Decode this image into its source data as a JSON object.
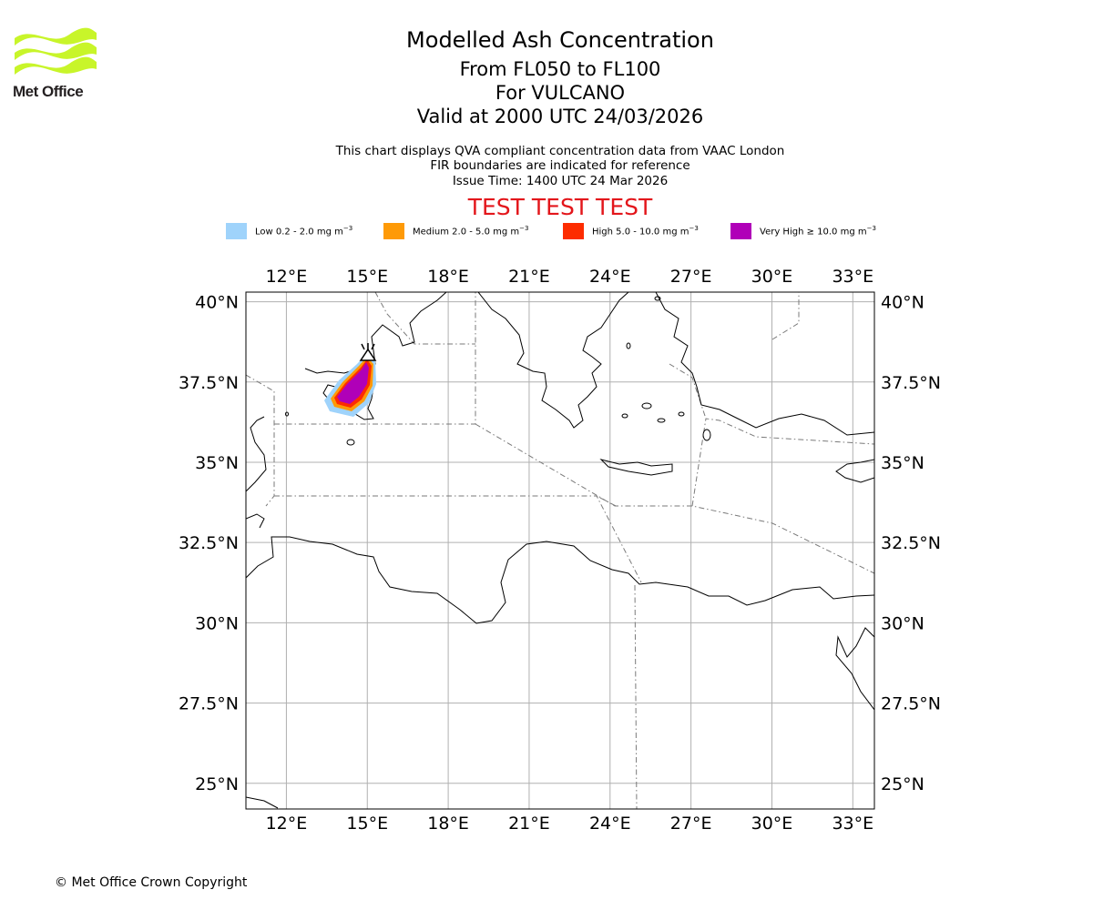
{
  "logo": {
    "name": "Met Office"
  },
  "header": {
    "title": "Modelled Ash Concentration",
    "level_range": "From FL050 to FL100",
    "volcano": "For VULCANO",
    "valid_time": "Valid at 2000 UTC 24/03/2026",
    "note_1": "This chart displays QVA compliant concentration data from VAAC London",
    "note_2": "FIR boundaries are indicated for reference",
    "issue_time": "Issue Time: 1400 UTC 24 Mar 2026",
    "test_banner": "TEST TEST TEST"
  },
  "legend": [
    {
      "label": "Low 0.2 - 2.0 mg m",
      "unit_sup": "−3",
      "color": "#9fd3fb"
    },
    {
      "label": "Medium 2.0 - 5.0 mg m",
      "unit_sup": "−3",
      "color": "#fe9a07"
    },
    {
      "label": "High 5.0 - 10.0 mg m",
      "unit_sup": "−3",
      "color": "#fd2c00"
    },
    {
      "label": "Very High  ≥  10.0 mg m",
      "unit_sup": "−3",
      "color": "#b000b8"
    }
  ],
  "map": {
    "lon_ticks": [
      "12°E",
      "15°E",
      "18°E",
      "21°E",
      "24°E",
      "27°E",
      "30°E",
      "33°E"
    ],
    "lat_ticks": [
      "40°N",
      "37.5°N",
      "35°N",
      "32.5°N",
      "30°N",
      "27.5°N",
      "25°N"
    ],
    "lon_values": [
      12,
      15,
      18,
      21,
      24,
      27,
      30,
      33
    ],
    "lat_values": [
      40,
      37.5,
      35,
      32.5,
      30,
      27.5,
      25
    ],
    "extent": {
      "lon_min": 10.5,
      "lon_max": 33.8,
      "lat_min": 24.2,
      "lat_max": 40.3
    },
    "volcano_marker": {
      "lon": 14.96,
      "lat": 38.4
    }
  },
  "footer": {
    "copyright": "© Met Office Crown Copyright"
  }
}
